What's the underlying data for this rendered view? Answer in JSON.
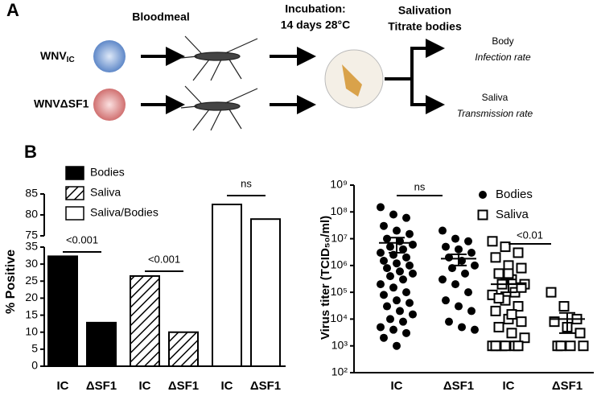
{
  "panel_a": {
    "label": "A",
    "wnv_ic": {
      "main": "WNV",
      "sub": "IC"
    },
    "wnv_sf1": "WNVΔSF1",
    "step1": "Bloodmeal",
    "step2_line1": "Incubation:",
    "step2_line2": "14 days 28°C",
    "step3_line1": "Salivation",
    "step3_line2": "Titrate bodies",
    "out1": "Body",
    "out1_rate": "Infection rate",
    "out2": "Saliva",
    "out2_rate": "Transmission rate"
  },
  "panel_b_label": "B",
  "chart_data": [
    {
      "type": "bar",
      "ylabel": "% Positive",
      "categories": [
        "IC",
        "ΔSF1",
        "IC",
        "ΔSF1",
        "IC",
        "ΔSF1"
      ],
      "series": [
        {
          "name": "Bodies",
          "color": "#000000",
          "pattern": "solid",
          "values": [
            32.3,
            12.8,
            null,
            null,
            null,
            null
          ]
        },
        {
          "name": "Saliva",
          "color": "#000000",
          "pattern": "hatch",
          "values": [
            null,
            null,
            26.5,
            10.0,
            null,
            null
          ]
        },
        {
          "name": "Saliva/Bodies",
          "color": "#ffffff",
          "pattern": "open",
          "values": [
            null,
            null,
            null,
            null,
            82.5,
            79.0
          ]
        }
      ],
      "ylim": [
        0,
        85
      ],
      "ybreak": [
        35,
        75
      ],
      "yticks": [
        0,
        5,
        10,
        15,
        20,
        25,
        30,
        35,
        75,
        80,
        85
      ],
      "annotations": [
        "<0.001",
        "<0.001",
        "ns"
      ],
      "legend": "upper left"
    },
    {
      "type": "dotplot",
      "ylabel": "Virus titer  (TCID₅₀/ml)",
      "log_scale": true,
      "categories": [
        "IC",
        "ΔSF1",
        "IC",
        "ΔSF1"
      ],
      "series": [
        {
          "name": "Bodies",
          "marker": "circle",
          "groups": [
            [
              150000000,
              80000000,
              60000000,
              30000000,
              20000000,
              15000000,
              10000000,
              8000000,
              6000000,
              5000000,
              4000000,
              3000000,
              2500000,
              2000000,
              1500000,
              1200000,
              1000000,
              800000,
              600000,
              500000,
              400000,
              300000,
              200000,
              150000,
              100000,
              80000,
              50000,
              40000,
              30000,
              20000,
              15000,
              10000,
              8000,
              5000,
              4000,
              3000,
              2000,
              1000
            ],
            [
              20000000,
              10000000,
              8000000,
              5000000,
              4000000,
              3000000,
              2000000,
              1500000,
              1000000,
              800000,
              500000,
              300000,
              200000,
              100000,
              50000,
              30000,
              20000,
              8000,
              5000,
              4000
            ]
          ],
          "mean": [
            7000000,
            1800000
          ],
          "sem": [
            4000000,
            800000
          ]
        },
        {
          "name": "Saliva",
          "marker": "square",
          "groups": [
            [
              8000000,
              5000000,
              3000000,
              2000000,
              1000000,
              800000,
              500000,
              300000,
              200000,
              200000,
              100000,
              80000,
              50000,
              30000,
              20000,
              10000,
              8000,
              5000,
              3000,
              2000,
              1000,
              1000,
              1000,
              1000,
              1000,
              1000,
              500000,
              150000,
              60000,
              15000
            ],
            [
              100000,
              30000,
              10000,
              8000,
              5000,
              3000,
              1000,
              1000,
              1000,
              1000
            ]
          ],
          "mean": [
            200000,
            10000
          ],
          "sem": [
            100000,
            7000
          ]
        }
      ],
      "ylim": [
        100,
        1000000000
      ],
      "yticks": [
        {
          "value": 100,
          "label": "10²"
        },
        {
          "value": 1000,
          "label": "10³"
        },
        {
          "value": 10000,
          "label": "10⁴"
        },
        {
          "value": 100000,
          "label": "10⁵"
        },
        {
          "value": 1000000,
          "label": "10⁶"
        },
        {
          "value": 10000000,
          "label": "10⁷"
        },
        {
          "value": 100000000,
          "label": "10⁸"
        },
        {
          "value": 1000000000,
          "label": "10⁹"
        }
      ],
      "annotations": [
        "ns",
        "<0.01"
      ],
      "legend": "upper right"
    }
  ]
}
